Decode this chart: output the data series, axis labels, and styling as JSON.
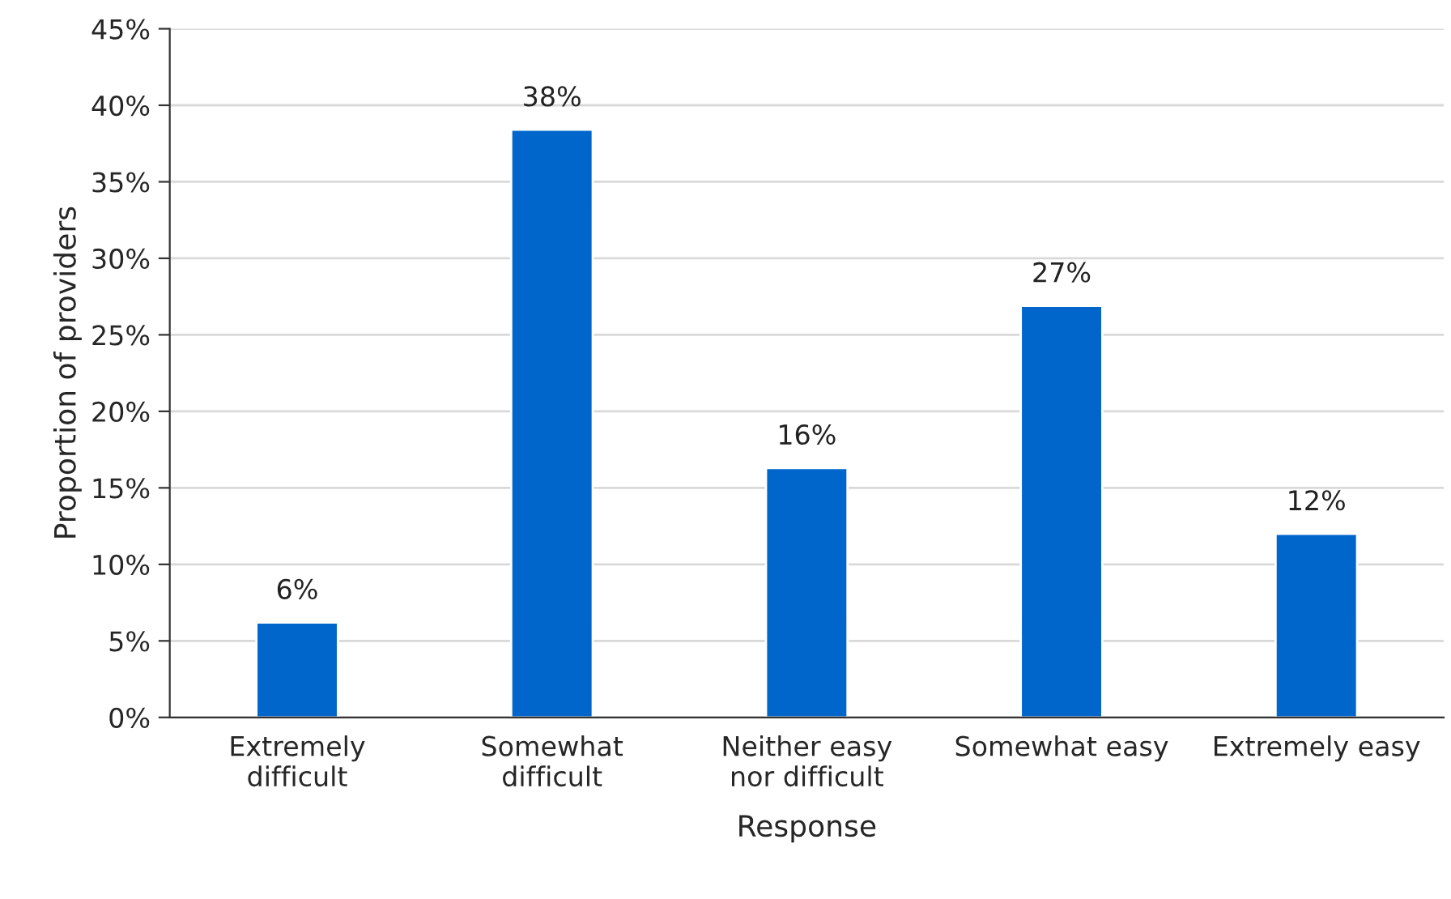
{
  "chart_data": {
    "type": "bar",
    "xlabel": "Response",
    "ylabel": "Proportion of providers",
    "categories": [
      "Extremely\ndifficult",
      "Somewhat\ndifficult",
      "Neither easy\nnor difficult",
      "Somewhat easy",
      "Extremely easy"
    ],
    "values": [
      6.2,
      38.4,
      16.3,
      26.9,
      12.0
    ],
    "value_labels": [
      "6%",
      "38%",
      "16%",
      "27%",
      "12%"
    ],
    "color": "#0066cc",
    "ylim": [
      0,
      45
    ],
    "yticks": [
      {
        "value": 0,
        "label": "0%"
      },
      {
        "value": 5,
        "label": "5%"
      },
      {
        "value": 10,
        "label": "10%"
      },
      {
        "value": 15,
        "label": "15%"
      },
      {
        "value": 20,
        "label": "20%"
      },
      {
        "value": 25,
        "label": "25%"
      },
      {
        "value": 30,
        "label": "30%"
      },
      {
        "value": 35,
        "label": "35%"
      },
      {
        "value": 40,
        "label": "40%"
      },
      {
        "value": 45,
        "label": "45%"
      }
    ],
    "grid": "y"
  }
}
